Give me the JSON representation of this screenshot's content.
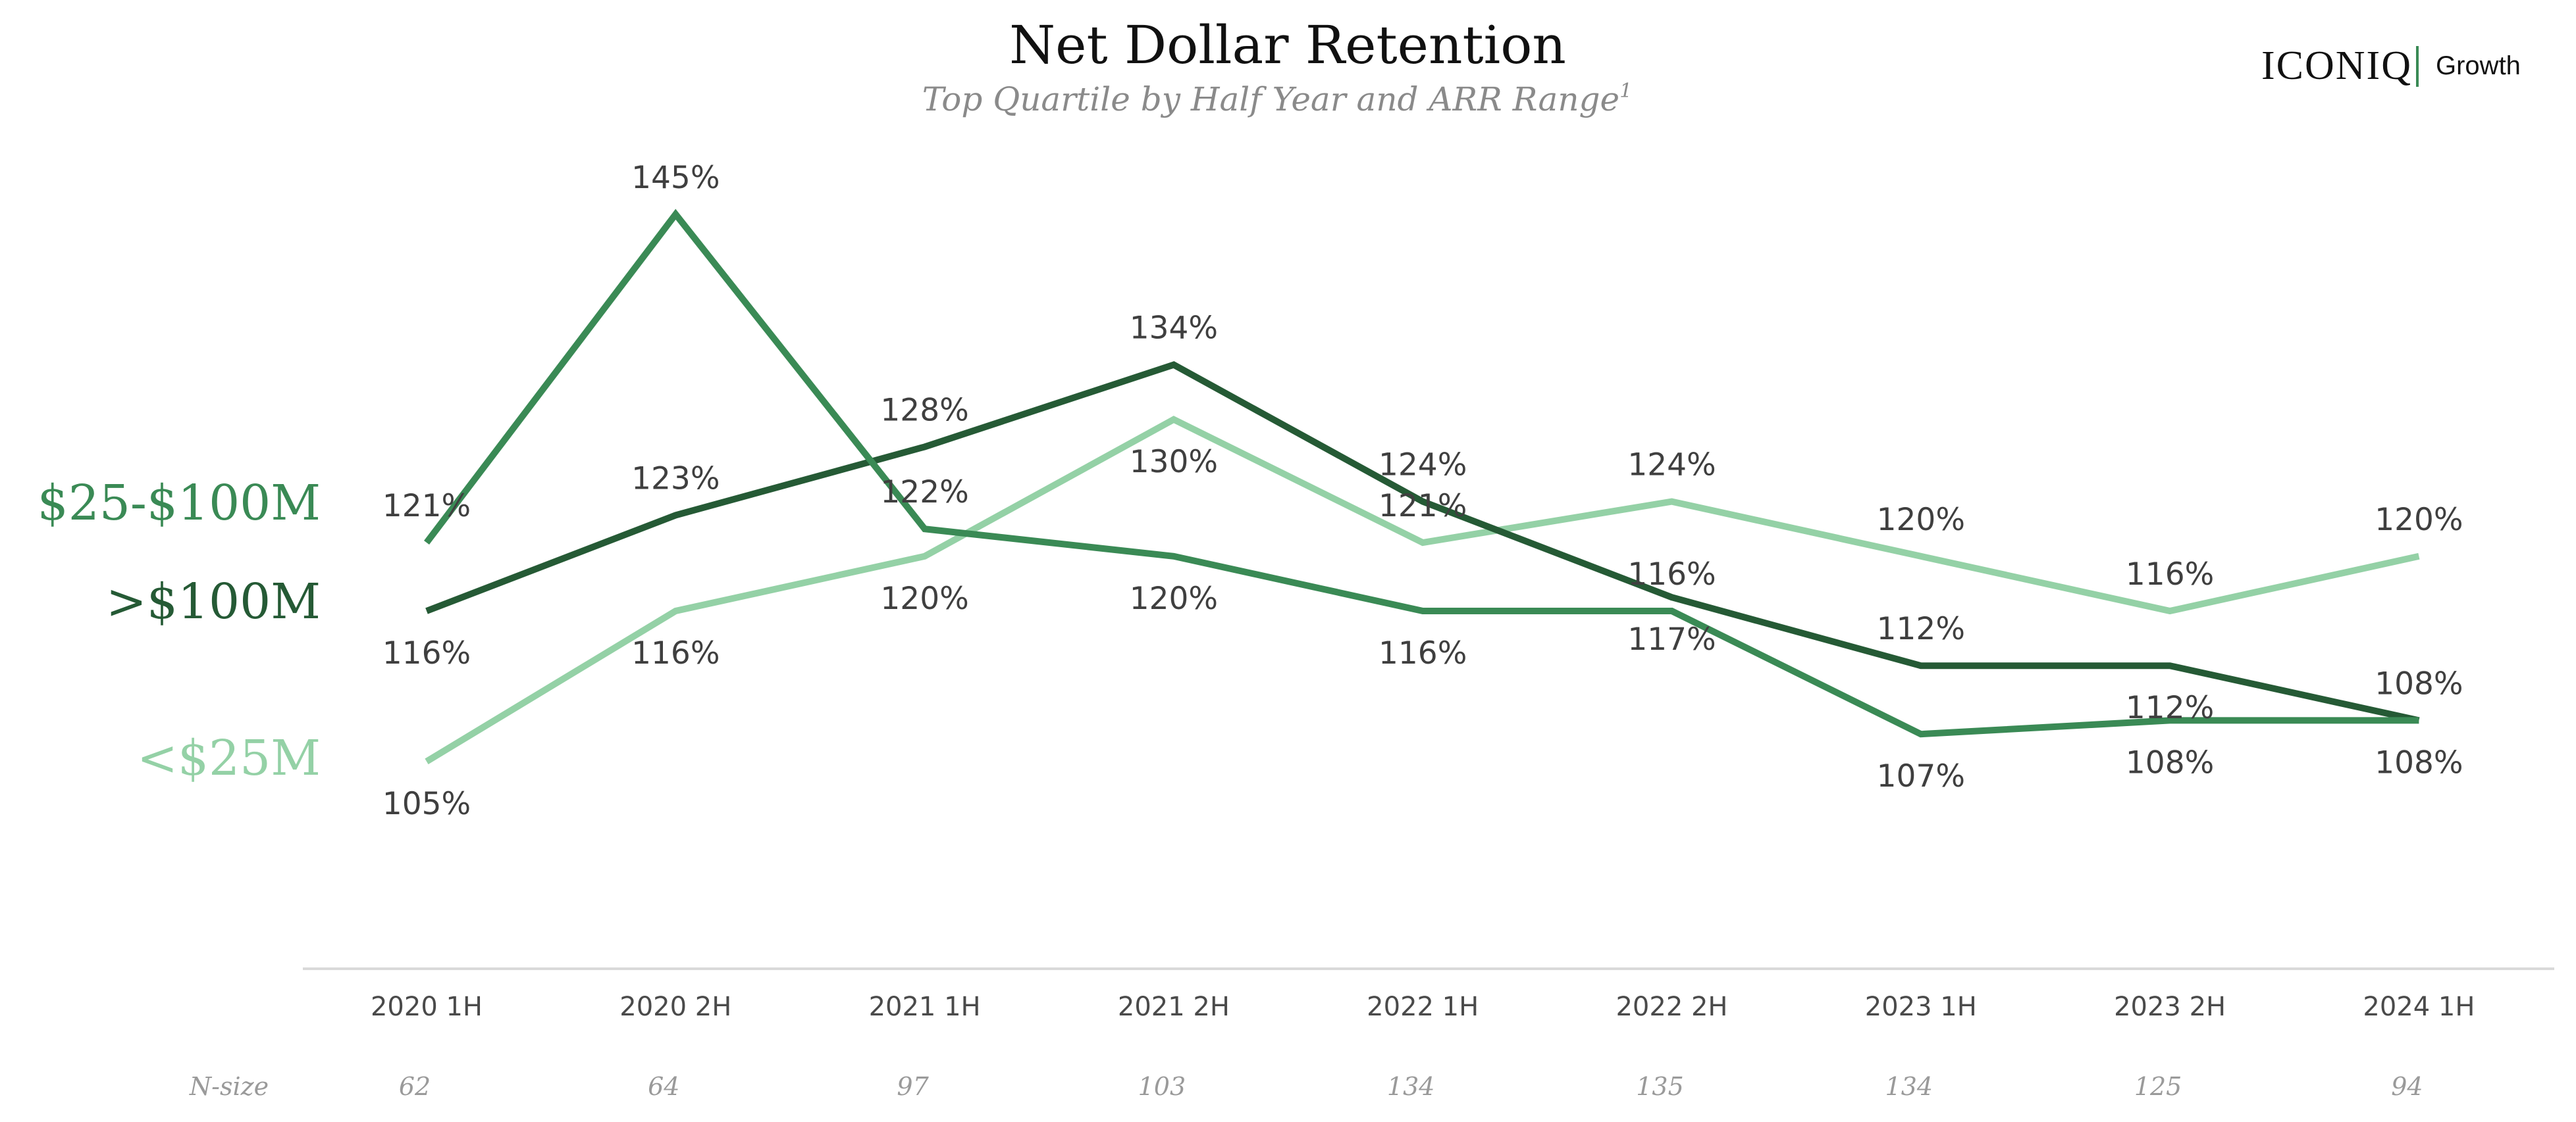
{
  "header": {
    "title": "Net Dollar Retention",
    "subtitle": "Top Quartile by Half Year and ARR Range",
    "subtitle_footnote": "1"
  },
  "logo": {
    "main": "ICONIQ",
    "sub": "Growth",
    "accent_color": "#3a8a55"
  },
  "n_size": {
    "label": "N-size",
    "values": [
      "62",
      "64",
      "97",
      "103",
      "134",
      "135",
      "134",
      "125",
      "94"
    ]
  },
  "chart_data": {
    "type": "line",
    "title": "Net Dollar Retention",
    "subtitle": "Top Quartile by Half Year and ARR Range",
    "xlabel": "",
    "ylabel": "",
    "categories": [
      "2020 1H",
      "2020 2H",
      "2021 1H",
      "2021 2H",
      "2022 1H",
      "2022 2H",
      "2023 1H",
      "2023 2H",
      "2024 1H"
    ],
    "ylim": [
      90,
      150
    ],
    "grid": false,
    "legend": "left, labels beside lines",
    "value_suffix": "%",
    "series": [
      {
        "name": "$25-$100M",
        "color": "#3a8a55",
        "values": [
          121,
          145,
          122,
          120,
          116,
          116,
          107,
          108,
          108
        ],
        "label_position": [
          "above",
          "above",
          "above",
          "below",
          "below",
          "above",
          "below",
          "below",
          "below"
        ]
      },
      {
        "name": ">$100M",
        "color": "#255a35",
        "values": [
          116,
          123,
          128,
          134,
          124,
          117,
          112,
          112,
          108
        ],
        "label_position": [
          "below",
          "above",
          "above",
          "above",
          "above",
          "below",
          "above",
          "below",
          "above"
        ]
      },
      {
        "name": "<$25M",
        "color": "#94d1a6",
        "values": [
          105,
          116,
          120,
          130,
          121,
          124,
          120,
          116,
          120
        ],
        "label_position": [
          "below",
          "below",
          "below",
          "below",
          "above",
          "above",
          "above",
          "above",
          "above"
        ]
      }
    ]
  }
}
